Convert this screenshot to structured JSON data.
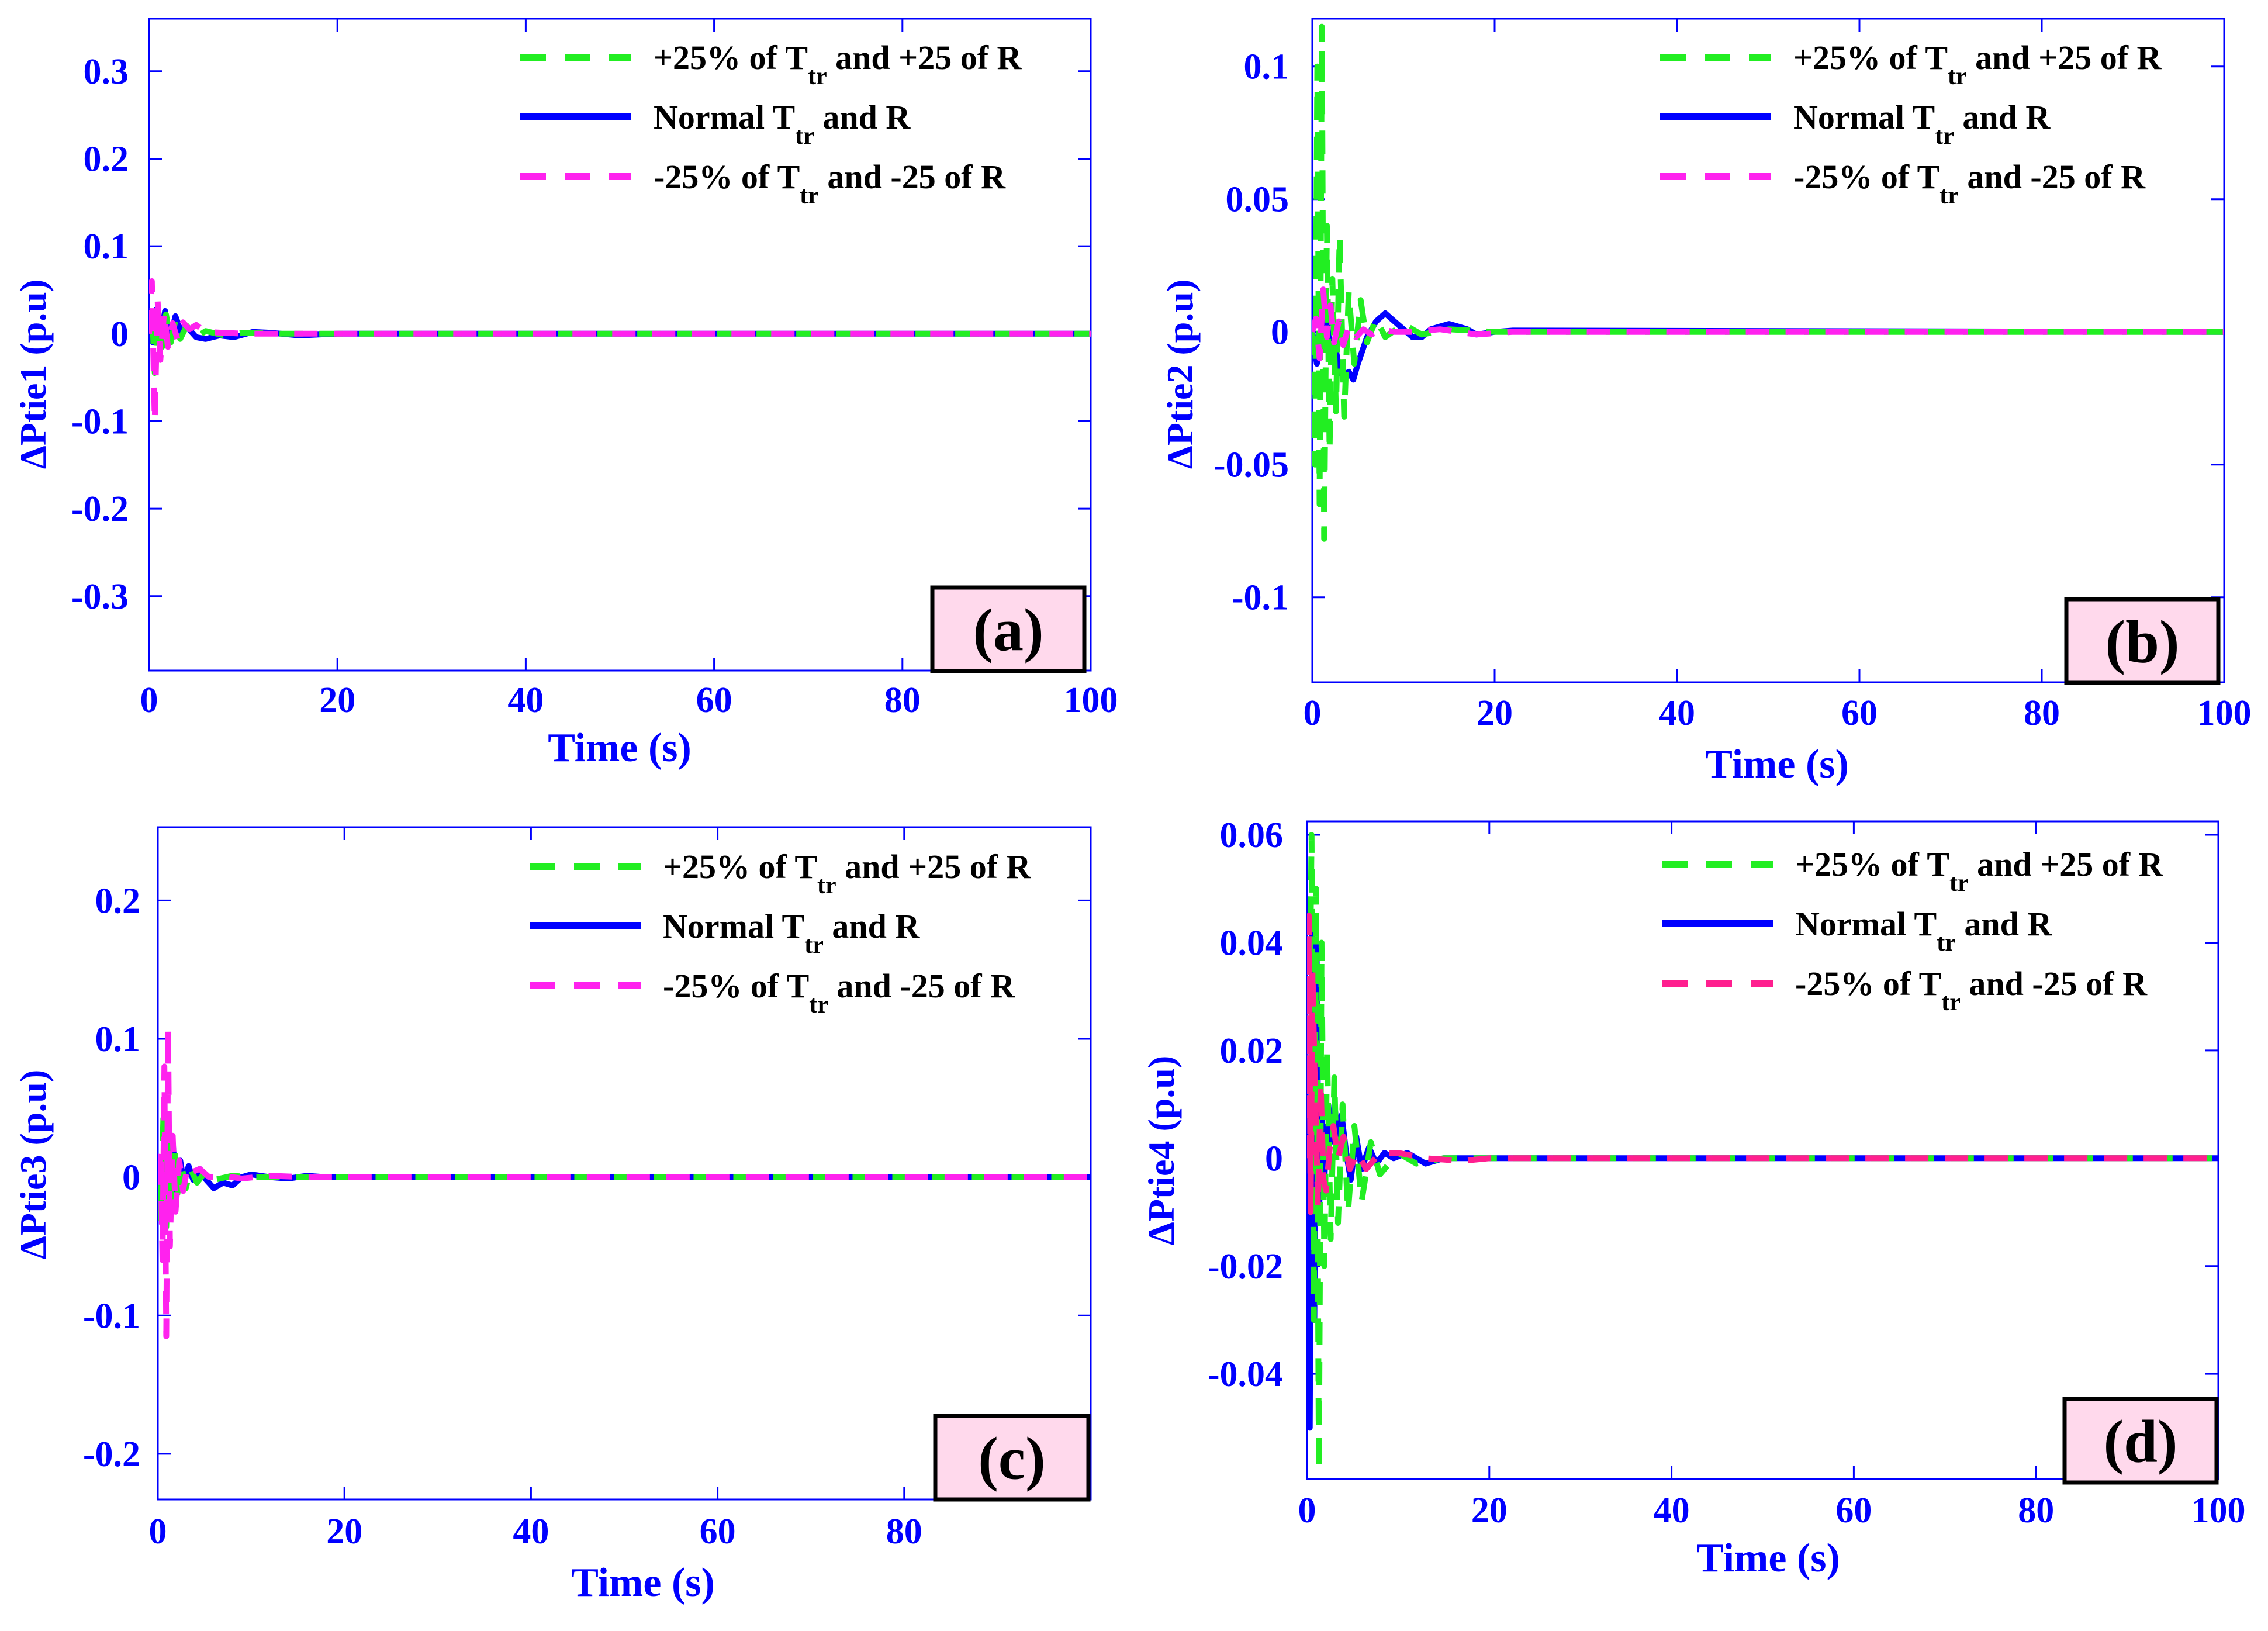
{
  "colors": {
    "axis": "#0000ff",
    "tick_text": "#0000ff",
    "legend_text": "#000000",
    "badge_fill": "#ffd9ec",
    "badge_stroke": "#000000"
  },
  "legend_labels": {
    "plus25": {
      "prefix": "+25% of T",
      "sub": "tr",
      "suffix": " and +25 of R"
    },
    "normal": {
      "prefix": "Normal T",
      "sub": "tr",
      "suffix": " and R"
    },
    "minus25": {
      "prefix": "-25% of T",
      "sub": "tr",
      "suffix": " and -25 of R"
    }
  },
  "chart_data": [
    {
      "type": "line",
      "panel_label": "(a)",
      "xlabel": "Time (s)",
      "ylabel": "ΔPtie1 (p.u)",
      "xlim": [
        0,
        100
      ],
      "ylim": [
        -0.385,
        0.36
      ],
      "xticks": [
        0,
        20,
        40,
        60,
        80,
        100
      ],
      "xtick_labels": [
        "0",
        "20",
        "40",
        "60",
        "80",
        "100"
      ],
      "yticks": [
        0.3,
        0.2,
        0.1,
        0,
        -0.1,
        -0.2,
        -0.3
      ],
      "ytick_labels": [
        "0.3",
        "0.2",
        "0.1",
        "0",
        "-0.1",
        "-0.2",
        "-0.3"
      ],
      "legend_position": "top-right",
      "series": [
        {
          "name": "+25% of Ttr and +25 of R",
          "color": "#22ee22",
          "dash": "dashed",
          "x": [
            0,
            0.3,
            0.6,
            1.0,
            1.4,
            1.8,
            2.3,
            2.8,
            3.3,
            4.0,
            5.0,
            6.0,
            8.0,
            10,
            14,
            20,
            100
          ],
          "y": [
            0,
            0.03,
            -0.045,
            0.02,
            -0.015,
            0.022,
            -0.01,
            0.015,
            -0.006,
            0.009,
            -0.004,
            0.003,
            -0.002,
            0.001,
            0,
            0,
            0
          ]
        },
        {
          "name": "Normal Ttr and R",
          "color": "#0000ff",
          "dash": "solid",
          "x": [
            0,
            0.4,
            0.8,
            1.2,
            1.7,
            2.2,
            2.8,
            3.4,
            4.0,
            5.0,
            6.0,
            7.5,
            9.0,
            11,
            13,
            16,
            20,
            100
          ],
          "y": [
            0,
            -0.01,
            0.028,
            -0.004,
            0.026,
            -0.006,
            0.02,
            0.002,
            0.008,
            -0.004,
            -0.006,
            -0.002,
            -0.004,
            0.002,
            0.001,
            -0.002,
            0,
            0
          ]
        },
        {
          "name": "-25% of Ttr and -25 of R",
          "color": "#ff22ee",
          "dash": "dashed",
          "x": [
            0,
            0.3,
            0.6,
            0.9,
            1.2,
            1.6,
            2.0,
            2.5,
            3.0,
            3.6,
            4.3,
            5.0,
            6.0,
            8.0,
            10,
            100
          ],
          "y": [
            0,
            0.06,
            -0.1,
            0.04,
            -0.03,
            0.025,
            -0.015,
            0.012,
            -0.006,
            0.013,
            0.005,
            0.01,
            0.002,
            0.001,
            0,
            0
          ]
        }
      ]
    },
    {
      "type": "line",
      "panel_label": "(b)",
      "xlabel": "Time (s)",
      "ylabel": "ΔPtie2 (p.u)",
      "xlim": [
        0,
        100
      ],
      "ylim": [
        -0.132,
        0.118
      ],
      "xticks": [
        0,
        20,
        40,
        60,
        80,
        100
      ],
      "xtick_labels": [
        "0",
        "20",
        "40",
        "60",
        "80",
        "100"
      ],
      "yticks": [
        0.1,
        0.05,
        0,
        -0.05,
        -0.1
      ],
      "ytick_labels": [
        "0.1",
        "0.05",
        "0",
        "-0.05",
        "-0.1"
      ],
      "legend_position": "top-right",
      "series": [
        {
          "name": "+25% of Ttr and +25 of R",
          "color": "#22ee22",
          "dash": "dashed",
          "x": [
            0,
            0.3,
            0.55,
            0.8,
            1.05,
            1.3,
            1.6,
            1.9,
            2.2,
            2.6,
            3.0,
            3.5,
            4.0,
            4.6,
            5.3,
            6.0,
            7.0,
            8.0,
            10,
            12,
            15,
            20,
            100
          ],
          "y": [
            0,
            -0.05,
            0.1,
            -0.065,
            0.115,
            -0.078,
            0.04,
            -0.045,
            0.02,
            -0.03,
            0.036,
            -0.032,
            0.015,
            -0.012,
            0.012,
            -0.004,
            0.005,
            -0.002,
            0.003,
            -0.001,
            0.001,
            0,
            0
          ]
        },
        {
          "name": "Normal Ttr and R",
          "color": "#0000ff",
          "dash": "solid",
          "x": [
            0,
            0.5,
            1.0,
            1.5,
            2.0,
            2.5,
            3.0,
            3.5,
            4.0,
            4.5,
            5.0,
            6.0,
            7.0,
            8.0,
            9.0,
            10,
            11,
            12,
            13,
            14,
            15,
            16,
            17,
            18,
            20,
            22,
            100
          ],
          "y": [
            0,
            -0.012,
            -0.005,
            0.01,
            -0.01,
            -0.005,
            -0.015,
            -0.017,
            -0.015,
            -0.018,
            -0.012,
            -0.002,
            0.004,
            0.007,
            0.004,
            0.001,
            -0.002,
            -0.002,
            0.001,
            0.002,
            0.003,
            0.002,
            0.001,
            -0.001,
            0,
            0.0005,
            0
          ]
        },
        {
          "name": "-25% of Ttr and -25 of R",
          "color": "#ff22ee",
          "dash": "dashed",
          "x": [
            0,
            0.4,
            0.8,
            1.2,
            1.6,
            2.0,
            2.4,
            2.9,
            3.4,
            4.0,
            4.8,
            5.6,
            6.5,
            7.5,
            9.0,
            11,
            14,
            18,
            22,
            100
          ],
          "y": [
            0,
            0.005,
            -0.01,
            0.016,
            -0.002,
            0.01,
            -0.004,
            0.004,
            -0.005,
            0.002,
            -0.002,
            0.001,
            -0.001,
            0.001,
            0,
            0,
            0.001,
            -0.001,
            0,
            0
          ]
        }
      ]
    },
    {
      "type": "line",
      "panel_label": "(c)",
      "xlabel": "Time (s)",
      "ylabel": "ΔPtie3 (p.u)",
      "xlim": [
        0,
        100
      ],
      "ylim": [
        -0.233,
        0.253
      ],
      "xticks": [
        0,
        20,
        40,
        60,
        80
      ],
      "xtick_labels": [
        "0",
        "20",
        "40",
        "60",
        "80"
      ],
      "yticks": [
        0.2,
        0.1,
        0,
        -0.1,
        -0.2
      ],
      "ytick_labels": [
        "0.2",
        "0.1",
        "0",
        "-0.1",
        "-0.2"
      ],
      "legend_position": "top-right",
      "series": [
        {
          "name": "+25% of Ttr and +25 of R",
          "color": "#22ee22",
          "dash": "dashed",
          "x": [
            0,
            0.3,
            0.6,
            0.9,
            1.2,
            1.5,
            1.8,
            2.1,
            2.5,
            3.0,
            3.5,
            4.2,
            5.0,
            6.0,
            8.0,
            10,
            14,
            20,
            100
          ],
          "y": [
            0,
            -0.03,
            0.045,
            -0.036,
            0.03,
            -0.02,
            0.02,
            -0.012,
            0.01,
            -0.008,
            0.006,
            -0.004,
            0.003,
            -0.002,
            0.001,
            0,
            0,
            0,
            0
          ]
        },
        {
          "name": "Normal Ttr and R",
          "color": "#0000ff",
          "dash": "solid",
          "x": [
            0,
            0.4,
            0.8,
            1.2,
            1.6,
            2.0,
            2.4,
            2.8,
            3.3,
            3.8,
            4.5,
            5.2,
            6.0,
            7.0,
            8.0,
            9.0,
            10,
            11,
            12,
            14,
            16,
            18,
            20,
            100
          ],
          "y": [
            0,
            -0.005,
            0.025,
            -0.018,
            0.025,
            -0.01,
            0.012,
            -0.004,
            0.008,
            -0.002,
            0.006,
            -0.002,
            -0.008,
            -0.004,
            -0.006,
            0,
            0.002,
            0.001,
            0,
            -0.001,
            0.001,
            0,
            0,
            0
          ]
        },
        {
          "name": "-25% of Ttr and -25 of R",
          "color": "#ff22ee",
          "dash": "dashed",
          "x": [
            0,
            0.3,
            0.5,
            0.7,
            0.9,
            1.1,
            1.3,
            1.6,
            1.9,
            2.3,
            2.7,
            3.2,
            3.8,
            4.5,
            5.5,
            7.0,
            9.0,
            12,
            16,
            20,
            100
          ],
          "y": [
            0,
            0.02,
            -0.06,
            0.08,
            -0.115,
            0.108,
            -0.05,
            0.03,
            -0.025,
            0.012,
            -0.01,
            0.008,
            0.004,
            0.006,
            0,
            0.001,
            -0.001,
            0.001,
            0,
            0,
            0
          ]
        }
      ]
    },
    {
      "type": "line",
      "panel_label": "(d)",
      "xlabel": "Time (s)",
      "ylabel": "ΔPtie4 (p.u)",
      "xlim": [
        0,
        100
      ],
      "ylim": [
        -0.0595,
        0.0625
      ],
      "xticks": [
        0,
        20,
        40,
        60,
        80,
        100
      ],
      "xtick_labels": [
        "0",
        "20",
        "40",
        "60",
        "80",
        "100"
      ],
      "yticks": [
        0.06,
        0.04,
        0.02,
        0,
        -0.02,
        -0.04
      ],
      "ytick_labels": [
        "0.06",
        "0.04",
        "0.02",
        "0",
        "-0.02",
        "-0.04"
      ],
      "legend_position": "top-right",
      "series": [
        {
          "name": "+25% of Ttr and +25 of R",
          "color": "#22ee22",
          "dash": "dashed",
          "x": [
            0,
            0.25,
            0.5,
            0.75,
            1.0,
            1.3,
            1.6,
            1.9,
            2.2,
            2.6,
            3.0,
            3.4,
            3.9,
            4.5,
            5.2,
            6.0,
            7.0,
            8.0,
            10,
            12,
            15,
            20,
            100
          ],
          "y": [
            0,
            0.02,
            0.06,
            -0.03,
            0.05,
            -0.058,
            0.04,
            -0.02,
            0.02,
            -0.015,
            0.015,
            -0.012,
            0.01,
            -0.01,
            0.006,
            -0.008,
            0.003,
            -0.003,
            0.001,
            -0.001,
            0,
            0,
            0
          ]
        },
        {
          "name": "Normal Ttr and R",
          "color": "#0000ff",
          "dash": "solid",
          "x": [
            0,
            0.3,
            0.55,
            0.8,
            1.05,
            1.3,
            1.6,
            1.9,
            2.2,
            2.6,
            3.0,
            3.4,
            3.8,
            4.3,
            4.8,
            5.4,
            6.0,
            6.8,
            7.6,
            8.5,
            9.5,
            11,
            13,
            15,
            20,
            100
          ],
          "y": [
            0,
            -0.05,
            0.045,
            -0.03,
            0.04,
            -0.012,
            0.008,
            -0.004,
            0.006,
            0.003,
            0.01,
            0.004,
            0.008,
            0.001,
            -0.004,
            0.004,
            -0.002,
            0.002,
            -0.001,
            0.001,
            0,
            0.001,
            -0.001,
            0,
            0,
            0
          ]
        },
        {
          "name": "-25% of Ttr and -25 of R",
          "color": "#ff1f8f",
          "dash": "dashed",
          "x": [
            0,
            0.2,
            0.4,
            0.6,
            0.8,
            1.0,
            1.2,
            1.5,
            1.8,
            2.1,
            2.5,
            2.9,
            3.4,
            4.0,
            4.7,
            5.5,
            6.5,
            8.0,
            10,
            13,
            17,
            20,
            100
          ],
          "y": [
            0,
            0.045,
            -0.01,
            0.035,
            0.018,
            0.005,
            -0.009,
            0.014,
            -0.004,
            -0.006,
            0.002,
            0.006,
            0.0,
            0.004,
            -0.002,
            0.001,
            -0.002,
            0.001,
            0.001,
            0,
            -0.0005,
            0,
            0
          ]
        }
      ]
    }
  ]
}
